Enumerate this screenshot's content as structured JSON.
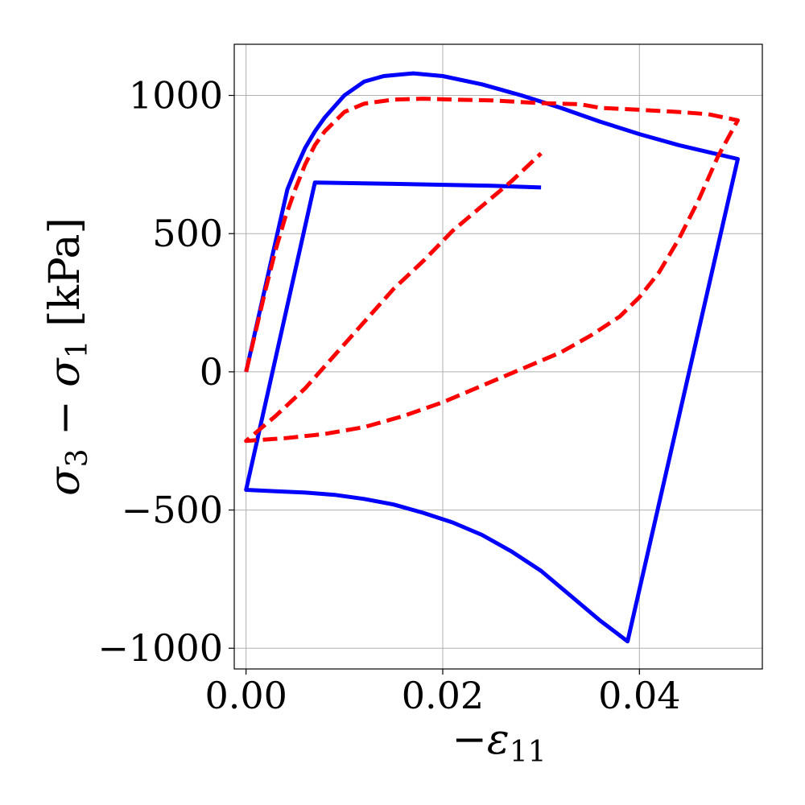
{
  "chart_data": {
    "type": "line",
    "title": "",
    "xlabel_parts": {
      "sign": "−",
      "symbol": "ε",
      "subscript": "11"
    },
    "ylabel_parts": {
      "a": "σ",
      "a_sub": "3",
      "minus": " − ",
      "b": "σ",
      "b_sub": "1",
      "unit": " [kPa]"
    },
    "xlim": [
      -0.0012,
      0.0525
    ],
    "ylim": [
      -1075,
      1185
    ],
    "grid": true,
    "x_ticks": [
      {
        "value": 0.0,
        "label": "0.00"
      },
      {
        "value": 0.02,
        "label": "0.02"
      },
      {
        "value": 0.04,
        "label": "0.04"
      }
    ],
    "y_ticks": [
      {
        "value": -1000,
        "label": "−1000"
      },
      {
        "value": -500,
        "label": "−500"
      },
      {
        "value": 0,
        "label": "0"
      },
      {
        "value": 500,
        "label": "500"
      },
      {
        "value": 1000,
        "label": "1000"
      }
    ],
    "series": [
      {
        "color": "#0000ff",
        "dash": "solid",
        "points": [
          [
            0.0,
            0
          ],
          [
            0.0042,
            660
          ],
          [
            0.005,
            730
          ],
          [
            0.006,
            810
          ],
          [
            0.007,
            870
          ],
          [
            0.008,
            920
          ],
          [
            0.01,
            1000
          ],
          [
            0.012,
            1050
          ],
          [
            0.014,
            1070
          ],
          [
            0.017,
            1080
          ],
          [
            0.02,
            1070
          ],
          [
            0.024,
            1040
          ],
          [
            0.028,
            1000
          ],
          [
            0.032,
            955
          ],
          [
            0.036,
            905
          ],
          [
            0.04,
            860
          ],
          [
            0.044,
            820
          ],
          [
            0.047,
            795
          ],
          [
            0.05,
            770
          ],
          [
            0.0388,
            -975
          ],
          [
            0.036,
            -900
          ],
          [
            0.033,
            -810
          ],
          [
            0.03,
            -720
          ],
          [
            0.027,
            -650
          ],
          [
            0.024,
            -590
          ],
          [
            0.021,
            -545
          ],
          [
            0.018,
            -510
          ],
          [
            0.015,
            -480
          ],
          [
            0.012,
            -460
          ],
          [
            0.009,
            -445
          ],
          [
            0.006,
            -437
          ],
          [
            0.003,
            -432
          ],
          [
            0.0,
            -427
          ],
          [
            0.007,
            685
          ],
          [
            0.015,
            680
          ],
          [
            0.025,
            673
          ],
          [
            0.03,
            667
          ]
        ]
      },
      {
        "color": "#ff0000",
        "dash": "dashed",
        "points": [
          [
            0.0,
            0
          ],
          [
            0.001,
            150
          ],
          [
            0.002,
            300
          ],
          [
            0.003,
            440
          ],
          [
            0.004,
            560
          ],
          [
            0.005,
            660
          ],
          [
            0.006,
            750
          ],
          [
            0.007,
            820
          ],
          [
            0.008,
            870
          ],
          [
            0.01,
            940
          ],
          [
            0.012,
            970
          ],
          [
            0.015,
            985
          ],
          [
            0.018,
            988
          ],
          [
            0.021,
            985
          ],
          [
            0.025,
            982
          ],
          [
            0.03,
            972
          ],
          [
            0.034,
            968
          ],
          [
            0.036,
            955
          ],
          [
            0.04,
            948
          ],
          [
            0.044,
            940
          ],
          [
            0.047,
            932
          ],
          [
            0.05,
            910
          ],
          [
            0.048,
            780
          ],
          [
            0.046,
            620
          ],
          [
            0.044,
            480
          ],
          [
            0.042,
            360
          ],
          [
            0.04,
            270
          ],
          [
            0.038,
            200
          ],
          [
            0.035,
            130
          ],
          [
            0.032,
            70
          ],
          [
            0.028,
            10
          ],
          [
            0.024,
            -50
          ],
          [
            0.02,
            -110
          ],
          [
            0.016,
            -160
          ],
          [
            0.012,
            -200
          ],
          [
            0.008,
            -225
          ],
          [
            0.004,
            -240
          ],
          [
            0.0,
            -250
          ],
          [
            0.003,
            -160
          ],
          [
            0.006,
            -60
          ],
          [
            0.009,
            60
          ],
          [
            0.012,
            180
          ],
          [
            0.015,
            300
          ],
          [
            0.018,
            400
          ],
          [
            0.021,
            510
          ],
          [
            0.024,
            600
          ],
          [
            0.027,
            690
          ],
          [
            0.03,
            790
          ]
        ]
      }
    ]
  }
}
